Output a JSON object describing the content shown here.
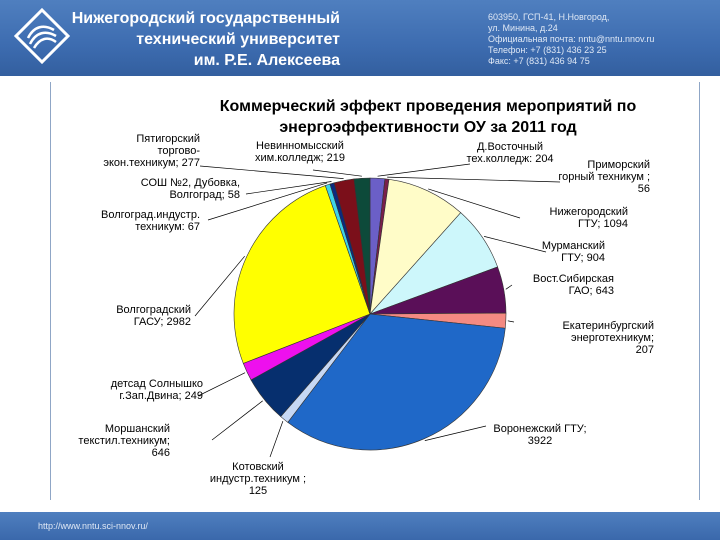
{
  "header": {
    "university_lines": [
      "Нижегородский государственный",
      "технический университет",
      "им. Р.Е. Алексеева"
    ],
    "contact_lines": [
      "603950, ГСП-41, Н.Новгород,",
      "ул. Минина, д.24",
      "Официальная почта: nntu@nntu.nnov.ru",
      "Телефон: +7 (831) 436 23 25",
      "Факс: +7 (831) 436 94 75"
    ]
  },
  "footer": {
    "url": "http://www.nntu.sci-nnov.ru/"
  },
  "chart_data": {
    "type": "pie",
    "title_lines": [
      "Коммерческий эффект проведения мероприятий по",
      "энергоэффективности ОУ за 2011 год"
    ],
    "slices": [
      {
        "label_lines": [
          "Д.Восточный",
          "тех.колледж: 204"
        ],
        "value": 204,
        "color": "#6b5fc7"
      },
      {
        "label_lines": [
          "Приморский",
          "горный техникум ;",
          "56"
        ],
        "value": 56,
        "color": "#7a1f4a"
      },
      {
        "label_lines": [
          "Нижегородский",
          "ГТУ; 1094"
        ],
        "value": 1094,
        "color": "#fffcc8"
      },
      {
        "label_lines": [
          "Мурманский",
          "ГТУ; 904"
        ],
        "value": 904,
        "color": "#cdf7fb"
      },
      {
        "label_lines": [
          "Вост.Сибирская",
          "ГАО; 643"
        ],
        "value": 643,
        "color": "#5a0f58"
      },
      {
        "label_lines": [
          "Екатеринбургский",
          "энерготехникум;",
          "207"
        ],
        "value": 207,
        "color": "#f48a82"
      },
      {
        "label_lines": [
          "Воронежский ГТУ;",
          "3922"
        ],
        "value": 3922,
        "color": "#1f68c8"
      },
      {
        "label_lines": [
          "Котовский",
          "индустр.техникум ;",
          "125"
        ],
        "value": 125,
        "color": "#c6d8f4"
      },
      {
        "label_lines": [
          "Моршанский",
          "текстил.техникум;",
          "646"
        ],
        "value": 646,
        "color": "#062f6e"
      },
      {
        "label_lines": [
          "детсад Солнышко",
          "г.Зап.Двина; 249"
        ],
        "value": 249,
        "color": "#ee10ee"
      },
      {
        "label_lines": [
          "Волгоградский",
          "ГАСУ; 2982"
        ],
        "value": 2982,
        "color": "#ffff00"
      },
      {
        "label_lines": [
          "Волгоград.индустр.",
          "техникум: 67"
        ],
        "value": 67,
        "color": "#3fd3e8"
      },
      {
        "label_lines": [
          "СОШ №2, Дубовка,",
          "Волгоград; 58"
        ],
        "value": 58,
        "color": "#0c2a80"
      },
      {
        "label_lines": [
          "Пятигорский",
          "торгово-",
          "экон.техникум; 277"
        ],
        "value": 277,
        "color": "#7b0f1a"
      },
      {
        "label_lines": [
          "Невинномысский",
          "хим.колледж; 219"
        ],
        "value": 219,
        "color": "#0d4a3a"
      }
    ]
  }
}
